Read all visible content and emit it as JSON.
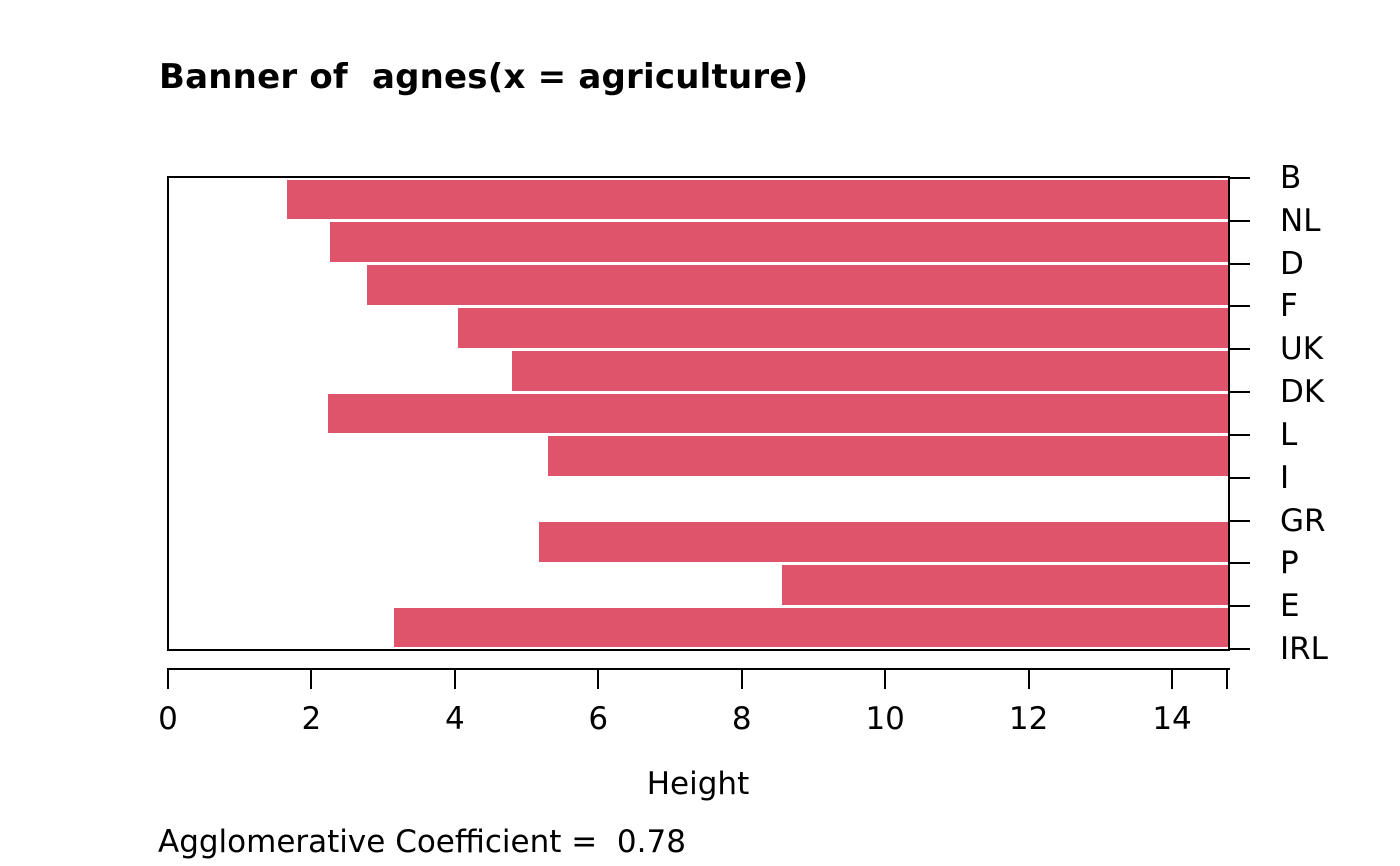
{
  "chart_data": {
    "type": "bar",
    "variant": "agnes-banner-plot",
    "title": "Banner of  agnes(x = agriculture)",
    "xlabel": "Height",
    "annotation": "Agglomerative Coefficient =  0.78",
    "agglomerative_coefficient": 0.78,
    "labels": [
      "B",
      "NL",
      "D",
      "F",
      "UK",
      "DK",
      "L",
      "I",
      "GR",
      "P",
      "E",
      "IRL"
    ],
    "bars": [
      {
        "between": [
          "B",
          "NL"
        ],
        "height": 1.65
      },
      {
        "between": [
          "NL",
          "D"
        ],
        "height": 2.25
      },
      {
        "between": [
          "D",
          "F"
        ],
        "height": 2.77
      },
      {
        "between": [
          "F",
          "UK"
        ],
        "height": 4.03
      },
      {
        "between": [
          "UK",
          "DK"
        ],
        "height": 4.79
      },
      {
        "between": [
          "DK",
          "L"
        ],
        "height": 2.22
      },
      {
        "between": [
          "L",
          "I"
        ],
        "height": 5.29
      },
      {
        "between": [
          "I",
          "GR"
        ],
        "height": 14.78
      },
      {
        "between": [
          "GR",
          "P"
        ],
        "height": 5.16
      },
      {
        "between": [
          "P",
          "E"
        ],
        "height": 8.55
      },
      {
        "between": [
          "E",
          "IRL"
        ],
        "height": 3.14
      }
    ],
    "bar_note": "bars extend from merge height to axis maximum; left white area shows height at which clusters merge",
    "xlim": [
      0,
      14.78
    ],
    "xticks": [
      0,
      2,
      4,
      6,
      8,
      10,
      12,
      14
    ],
    "grid": false,
    "legend": "none",
    "bar_color": "#DF536B",
    "separator_color": "#FFFFFF",
    "axis_color": "#000000",
    "text_color": "#000000",
    "background": "#FFFFFF"
  }
}
